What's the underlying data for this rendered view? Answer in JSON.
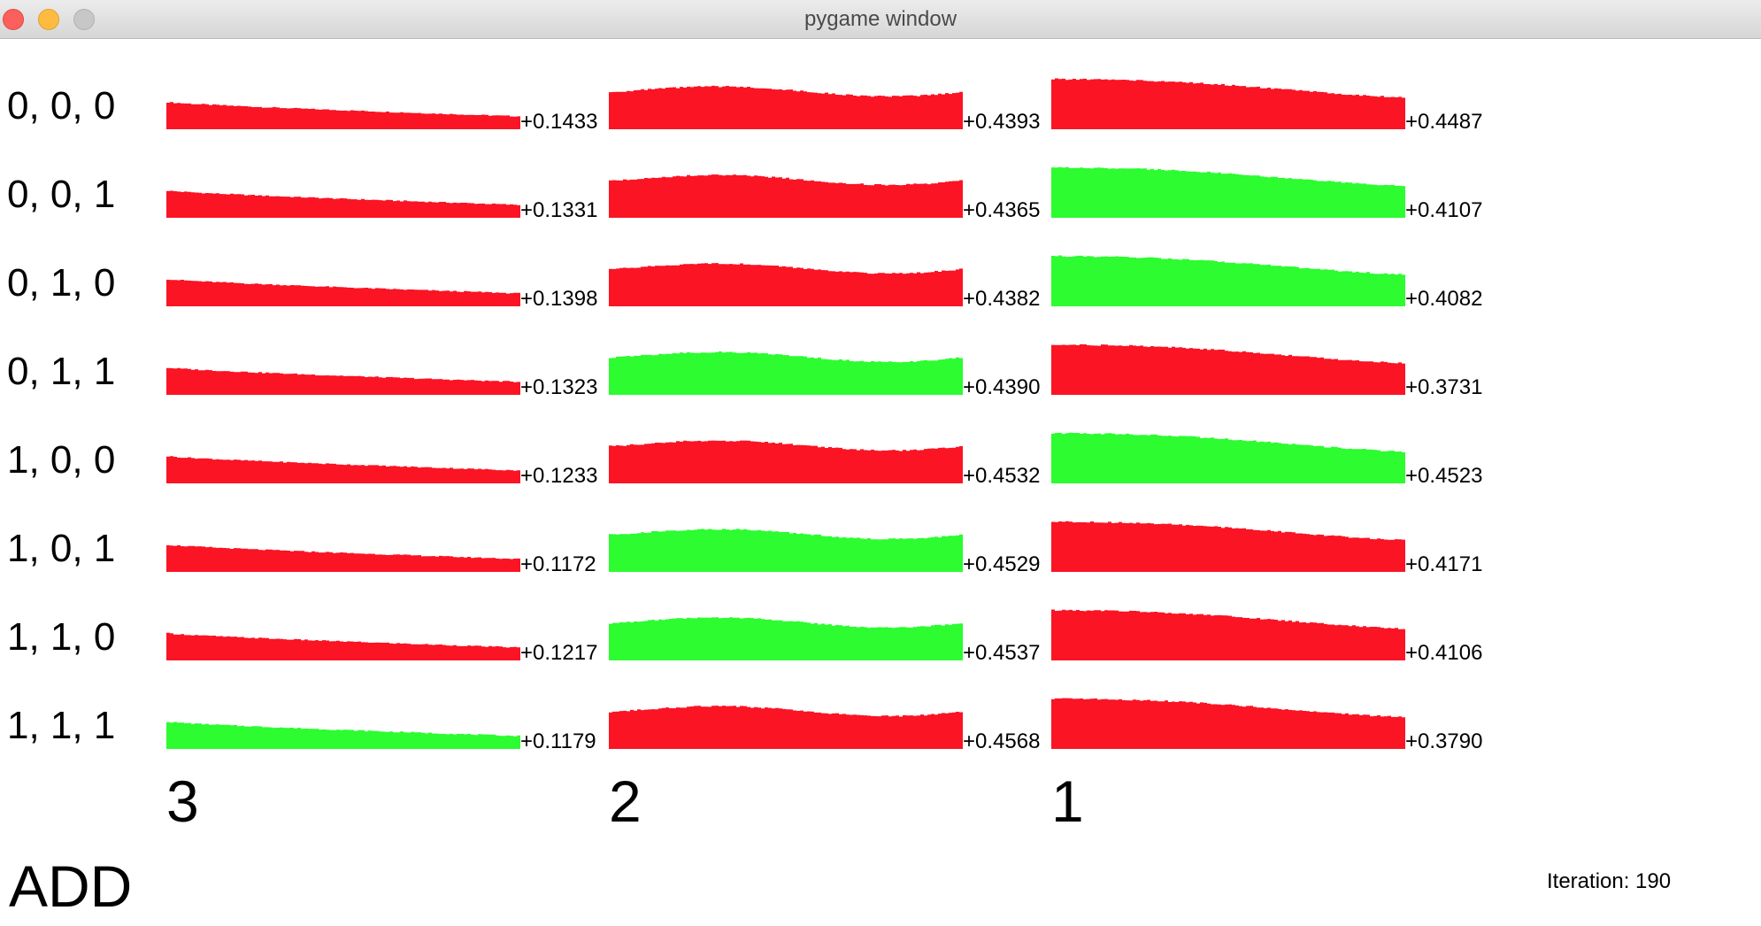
{
  "window": {
    "title": "pygame window"
  },
  "colors": {
    "wrong": "#fa1424",
    "correct": "#2cfc30"
  },
  "rows": [
    {
      "label": "0, 0, 0",
      "cells": [
        {
          "value": "+0.1433",
          "correct": false
        },
        {
          "value": "+0.4393",
          "correct": false
        },
        {
          "value": "+0.4487",
          "correct": false
        }
      ]
    },
    {
      "label": "0, 0, 1",
      "cells": [
        {
          "value": "+0.1331",
          "correct": false
        },
        {
          "value": "+0.4365",
          "correct": false
        },
        {
          "value": "+0.4107",
          "correct": true
        }
      ]
    },
    {
      "label": "0, 1, 0",
      "cells": [
        {
          "value": "+0.1398",
          "correct": false
        },
        {
          "value": "+0.4382",
          "correct": false
        },
        {
          "value": "+0.4082",
          "correct": true
        }
      ]
    },
    {
      "label": "0, 1, 1",
      "cells": [
        {
          "value": "+0.1323",
          "correct": false
        },
        {
          "value": "+0.4390",
          "correct": true
        },
        {
          "value": "+0.3731",
          "correct": false
        }
      ]
    },
    {
      "label": "1, 0, 0",
      "cells": [
        {
          "value": "+0.1233",
          "correct": false
        },
        {
          "value": "+0.4532",
          "correct": false
        },
        {
          "value": "+0.4523",
          "correct": true
        }
      ]
    },
    {
      "label": "1, 0, 1",
      "cells": [
        {
          "value": "+0.1172",
          "correct": false
        },
        {
          "value": "+0.4529",
          "correct": true
        },
        {
          "value": "+0.4171",
          "correct": false
        }
      ]
    },
    {
      "label": "1, 1, 0",
      "cells": [
        {
          "value": "+0.1217",
          "correct": false
        },
        {
          "value": "+0.4537",
          "correct": true
        },
        {
          "value": "+0.4106",
          "correct": false
        }
      ]
    },
    {
      "label": "1, 1, 1",
      "cells": [
        {
          "value": "+0.1179",
          "correct": true
        },
        {
          "value": "+0.4568",
          "correct": false
        },
        {
          "value": "+0.3790",
          "correct": false
        }
      ]
    }
  ],
  "columns": [
    {
      "label": "3"
    },
    {
      "label": "2"
    },
    {
      "label": "1"
    }
  ],
  "operation": "ADD",
  "iteration": {
    "label": "Iteration: 190"
  }
}
